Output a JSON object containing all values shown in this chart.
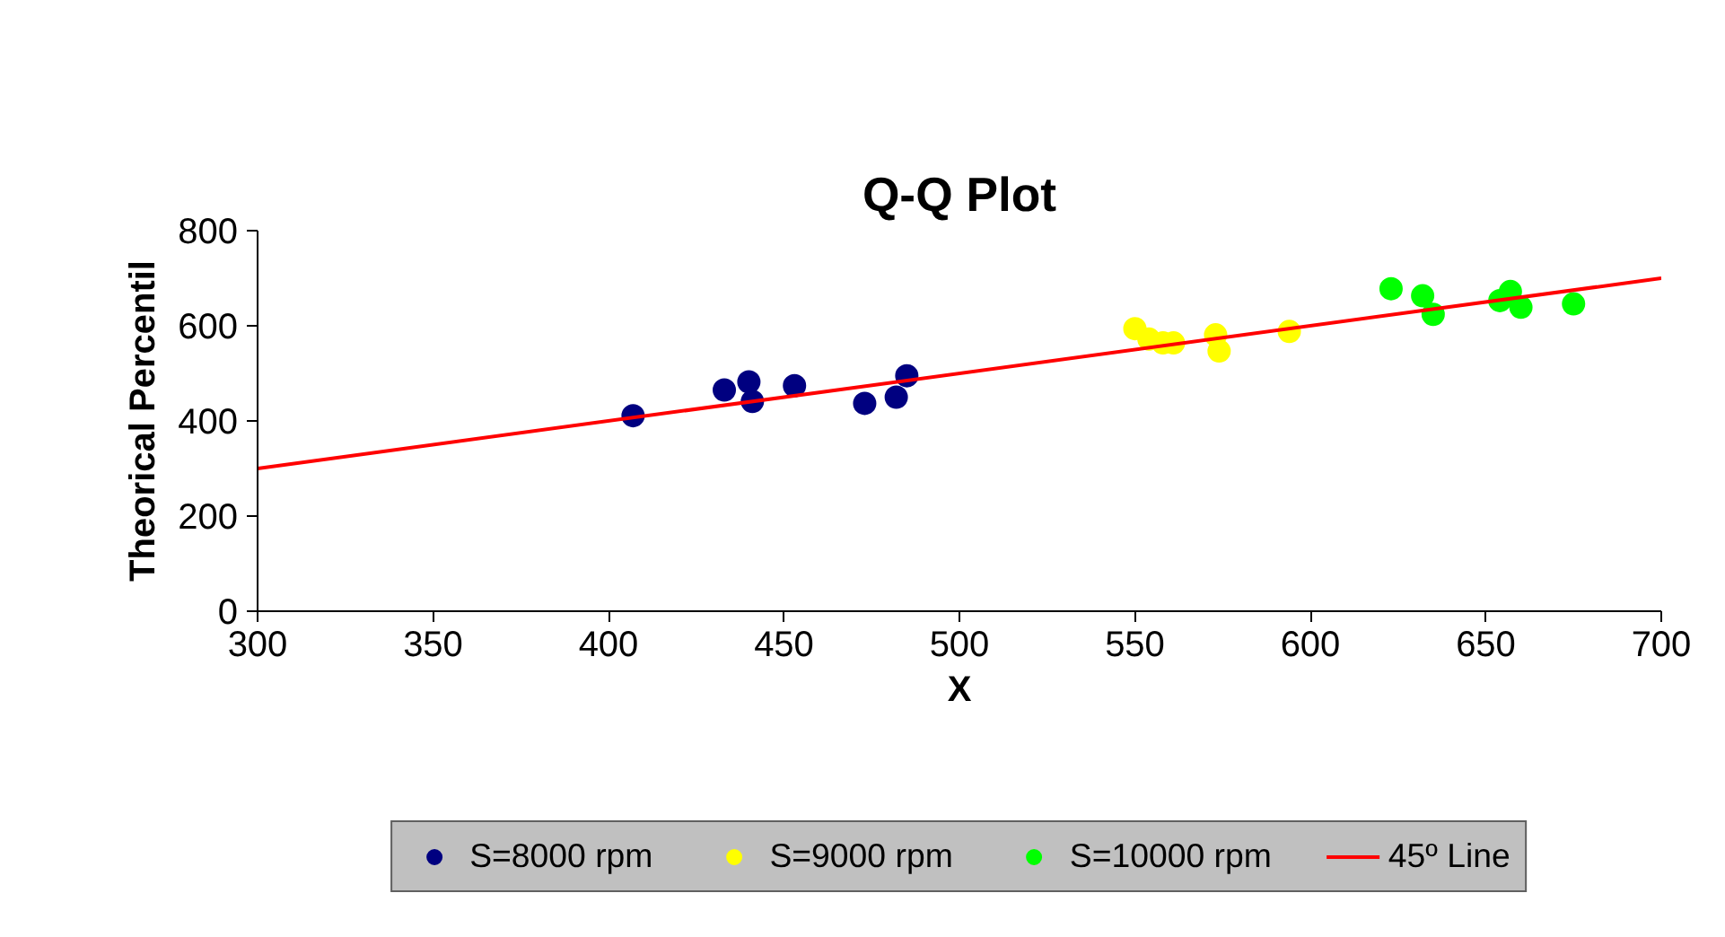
{
  "chart_data": {
    "type": "scatter",
    "title": "Q-Q Plot",
    "xlabel": "X",
    "ylabel": "Theorical Percentil",
    "xlim": [
      300,
      700
    ],
    "xticks": [
      300,
      350,
      400,
      450,
      500,
      550,
      600,
      650,
      700
    ],
    "ylim": [
      0,
      800
    ],
    "yticks": [
      0,
      200,
      400,
      600,
      800
    ],
    "grid": false,
    "legend": "bottom",
    "series": [
      {
        "name": "S=8000 rpm",
        "color": "#000080",
        "marker": "circle",
        "x": [
          407,
          433,
          440,
          441,
          453,
          473,
          482,
          485
        ],
        "values": [
          411,
          465,
          482,
          441,
          474,
          437,
          450,
          495
        ]
      },
      {
        "name": "S=9000 rpm",
        "color": "#ffff00",
        "marker": "circle",
        "x": [
          550,
          554,
          558,
          561,
          573,
          574,
          594
        ],
        "values": [
          594,
          572,
          564,
          564,
          581,
          547,
          588
        ]
      },
      {
        "name": "S=10000 rpm",
        "color": "#00ff00",
        "marker": "circle",
        "x": [
          623,
          632,
          635,
          654,
          657,
          660,
          675
        ],
        "values": [
          678,
          663,
          624,
          653,
          672,
          639,
          646
        ]
      },
      {
        "name": "45º Line",
        "type": "line",
        "color": "#ff0000",
        "marker": "none",
        "x": [
          300,
          700
        ],
        "values": [
          300,
          700
        ]
      }
    ]
  }
}
